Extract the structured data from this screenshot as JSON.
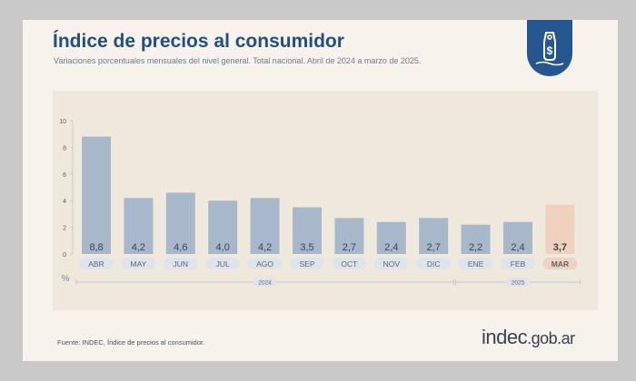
{
  "title": "Índice de precios al consumidor",
  "subtitle": "Variaciones porcentuales mensuales del nivel general. Total nacional. Abril de 2024 a marzo de 2025.",
  "source": "Fuente: INDEC, Índice de precios al consumidor.",
  "brand": {
    "main": "indec",
    "suffix": ".gob.ar"
  },
  "badge_icon": "price-tag-dollar-icon",
  "colors": {
    "bar": "#a9b7cb",
    "bar_highlight": "#f0d1bd",
    "title": "#1f4f86",
    "badge": "#24578f",
    "label_chip": "#dfe4ec"
  },
  "chart_data": {
    "type": "bar",
    "categories": [
      "ABR",
      "MAY",
      "JUN",
      "JUL",
      "AGO",
      "SEP",
      "OCT",
      "NOV",
      "DIC",
      "ENE",
      "FEB",
      "MAR"
    ],
    "values": [
      8.8,
      4.2,
      4.6,
      4.0,
      4.2,
      3.5,
      2.7,
      2.4,
      2.7,
      2.2,
      2.4,
      3.7
    ],
    "value_labels": [
      "8,8",
      "4,2",
      "4,6",
      "4,0",
      "4,2",
      "3,5",
      "2,7",
      "2,4",
      "2,7",
      "2,2",
      "2,4",
      "3,7"
    ],
    "highlighted_category": "MAR",
    "ylim": [
      0,
      10
    ],
    "yticks": [
      0,
      2,
      4,
      6,
      8,
      10
    ],
    "ylabel": "%",
    "xlabel": "",
    "grid": false,
    "year_groups": [
      {
        "label": "2024",
        "from": "ABR",
        "to": "DIC"
      },
      {
        "label": "2025",
        "from": "ENE",
        "to": "MAR"
      }
    ]
  }
}
